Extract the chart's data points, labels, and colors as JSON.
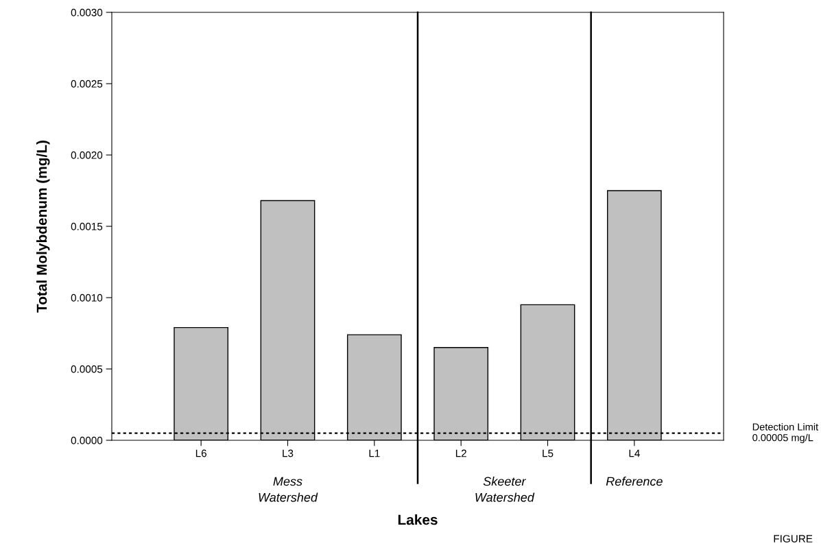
{
  "chart_data": {
    "type": "bar",
    "xlabel": "Lakes",
    "ylabel": "Total Molybdenum (mg/L)",
    "categories": [
      "L6",
      "L3",
      "L1",
      "L2",
      "L5",
      "L4"
    ],
    "values": [
      0.00079,
      0.00168,
      0.00074,
      0.00065,
      0.00095,
      0.00175
    ],
    "color": "#c0c0c0",
    "ylim": [
      0,
      0.003
    ],
    "yticks": [
      {
        "value": 0,
        "label": "0.0000"
      },
      {
        "value": 0.0005,
        "label": "0.0005"
      },
      {
        "value": 0.001,
        "label": "0.0010"
      },
      {
        "value": 0.0015,
        "label": "0.0015"
      },
      {
        "value": 0.002,
        "label": "0.0020"
      },
      {
        "value": 0.0025,
        "label": "0.0025"
      },
      {
        "value": 0.003,
        "label": "0.0030"
      }
    ],
    "grid": false,
    "ref_lines": [
      {
        "axis": "y",
        "value": 5e-05,
        "label": "Detection Limit\n0.00005 mg/L",
        "line_style": "dotted",
        "color": "#000000"
      }
    ],
    "annotations": [
      "Mess\nWatershed",
      "Skeeter\nWatershed",
      "Reference",
      "FIGURE"
    ]
  }
}
